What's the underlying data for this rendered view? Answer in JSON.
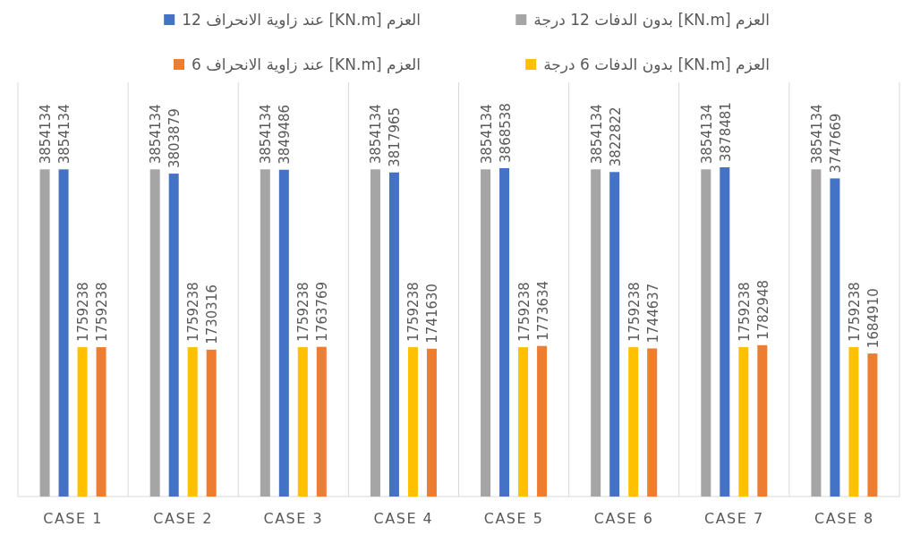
{
  "chart_data": {
    "type": "bar",
    "categories": [
      "CASE 1",
      "CASE 2",
      "CASE 3",
      "CASE 4",
      "CASE 5",
      "CASE 6",
      "CASE 7",
      "CASE 8"
    ],
    "series": [
      {
        "name": "العزم [KN.m] بدون الدفات 12 درجة",
        "color": "#a5a5a5",
        "values": [
          3854134,
          3854134,
          3854134,
          3854134,
          3854134,
          3854134,
          3854134,
          3854134
        ]
      },
      {
        "name": "العزم [KN.m] عند زاوية الانحراف 12",
        "color": "#4472c4",
        "values": [
          3854134,
          3803879,
          3849486,
          3817965,
          3868538,
          3822822,
          3878481,
          3747669
        ]
      },
      {
        "name": "العزم [KN.m] بدون الدفات 6 درجة",
        "color": "#ffc000",
        "values": [
          1759238,
          1759238,
          1759238,
          1759238,
          1759238,
          1759238,
          1759238,
          1759238
        ]
      },
      {
        "name": "العزم [KN.m] عند زاوية الانحراف 6",
        "color": "#ed7d31",
        "values": [
          1759238,
          1730316,
          1763769,
          1741630,
          1773634,
          1744637,
          1782948,
          1684910
        ]
      }
    ],
    "data_labels": true,
    "legend": "top",
    "tick_labels": "x"
  }
}
